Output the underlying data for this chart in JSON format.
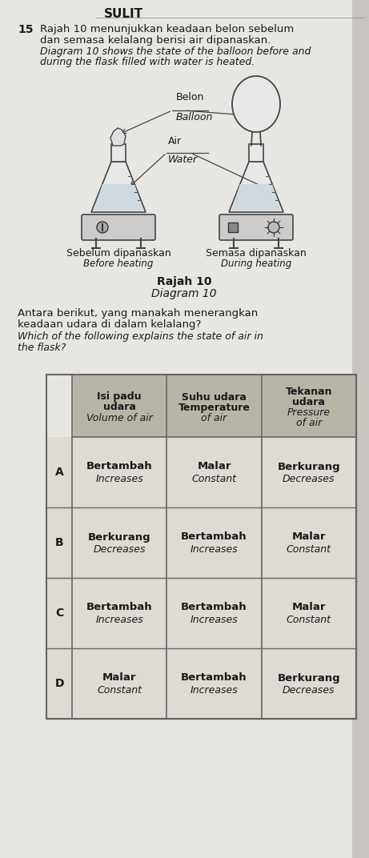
{
  "bg_color": "#d4d0cc",
  "page_bg": "#e8e6e2",
  "title": "SULIT",
  "q_number": "15",
  "malay_text1": "Rajah 10 menunjukkan keadaan belon sebelum",
  "malay_text2": "dan semasa kelalang berisi air dipanaskan.",
  "english_text1": "Diagram 10 shows the state of the balloon before and",
  "english_text2": "during the flask filled with water is heated.",
  "label_balloon_malay": "Belon",
  "label_balloon_english": "Balloon",
  "label_water_malay": "Air",
  "label_water_english": "Water",
  "caption_left_malay": "Sebelum dipanaskan",
  "caption_left_english": "Before heating",
  "caption_right_malay": "Semasa dipanaskan",
  "caption_right_english": "During heating",
  "diagram_title_malay": "Rajah 10",
  "diagram_title_english": "Diagram 10",
  "question_malay1": "Antara berikut, yang manakah menerangkan",
  "question_malay2": "keadaan udara di dalam kelalang?",
  "question_english1": "Which of the following explains the state of air in",
  "question_english2": "the flask?",
  "col_headers": [
    [
      "Isi padu",
      "udara",
      "Volume of air"
    ],
    [
      "Suhu udara",
      "Temperature",
      "of air"
    ],
    [
      "Tekanan",
      "udara",
      "Pressure",
      "of air"
    ]
  ],
  "rows": [
    {
      "label": "A",
      "col1_main": "Bertambah",
      "col1_sub": "Increases",
      "col2_main": "Malar",
      "col2_sub": "Constant",
      "col3_main": "Berkurang",
      "col3_sub": "Decreases"
    },
    {
      "label": "B",
      "col1_main": "Berkurang",
      "col1_sub": "Decreases",
      "col2_main": "Bertambah",
      "col2_sub": "Increases",
      "col3_main": "Malar",
      "col3_sub": "Constant"
    },
    {
      "label": "C",
      "col1_main": "Bertambah",
      "col1_sub": "Increases",
      "col2_main": "Bertambah",
      "col2_sub": "Increases",
      "col3_main": "Malar",
      "col3_sub": "Constant"
    },
    {
      "label": "D",
      "col1_main": "Malar",
      "col1_sub": "Constant",
      "col2_main": "Bertambah",
      "col2_sub": "Increases",
      "col3_main": "Berkurang",
      "col3_sub": "Decreases"
    }
  ],
  "header_bg": "#b8b4a8",
  "row_bg_light": "#dedad4",
  "table_line_color": "#666666",
  "text_color": "#1a1a1a"
}
